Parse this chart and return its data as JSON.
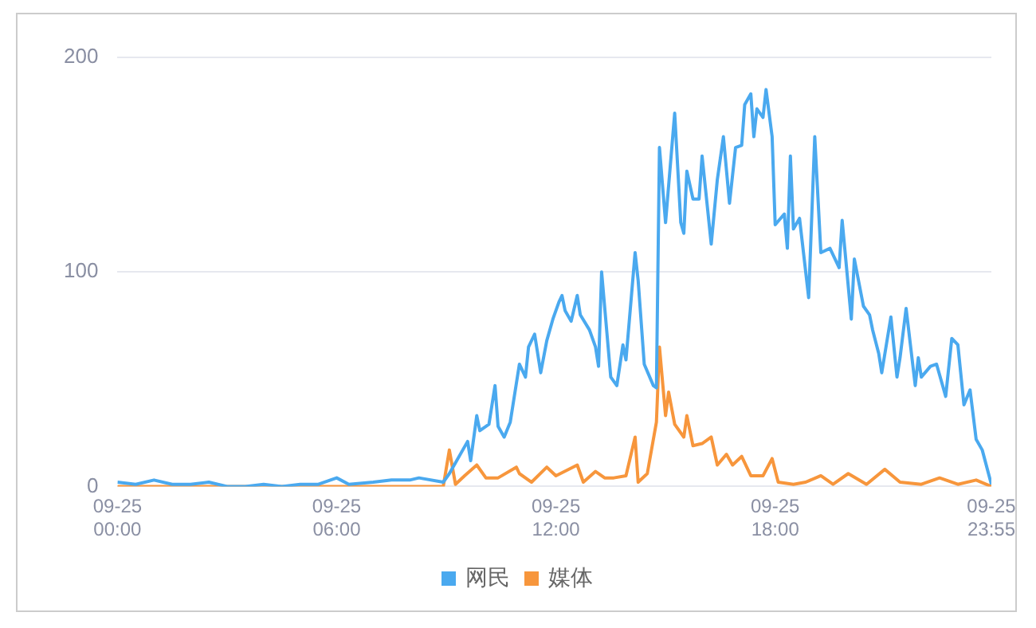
{
  "chart_data": {
    "type": "line",
    "legend": "bottom",
    "grid": "y",
    "marker": "none",
    "line_style": "solid",
    "xlim": [
      "--09-25T00:00",
      "--09-25T23:55"
    ],
    "xticks": [
      {
        "value": "--09-25T00:00",
        "label": "09-25 00:00"
      },
      {
        "value": "--09-25T06:00",
        "label": "09-25 06:00"
      },
      {
        "value": "--09-25T12:00",
        "label": "09-25 12:00"
      },
      {
        "value": "--09-25T18:00",
        "label": "09-25 18:00"
      },
      {
        "value": "--09-25T23:55",
        "label": "09-25 23:55"
      }
    ],
    "ylim": [
      0,
      200
    ],
    "yticks": [
      0,
      100,
      200
    ],
    "series": [
      {
        "name": "网民",
        "color": "#4aa9ef",
        "x": [
          "--09-25T00:00",
          "--09-25T00:30",
          "--09-25T01:00",
          "--09-25T01:30",
          "--09-25T02:00",
          "--09-25T02:30",
          "--09-25T03:00",
          "--09-25T03:30",
          "--09-25T04:00",
          "--09-25T04:30",
          "--09-25T05:00",
          "--09-25T05:30",
          "--09-25T06:00",
          "--09-25T06:20",
          "--09-25T07:00",
          "--09-25T07:30",
          "--09-25T08:00",
          "--09-25T08:15",
          "--09-25T08:55",
          "--09-25T09:05",
          "--09-25T09:35",
          "--09-25T09:40",
          "--09-25T09:50",
          "--09-25T09:55",
          "--09-25T10:10",
          "--09-25T10:20",
          "--09-25T10:25",
          "--09-25T10:35",
          "--09-25T10:45",
          "--09-25T11:00",
          "--09-25T11:10",
          "--09-25T11:15",
          "--09-25T11:25",
          "--09-25T11:35",
          "--09-25T11:45",
          "--09-25T11:55",
          "--09-25T12:05",
          "--09-25T12:10",
          "--09-25T12:15",
          "--09-25T12:25",
          "--09-25T12:35",
          "--09-25T12:40",
          "--09-25T12:55",
          "--09-25T13:05",
          "--09-25T13:10",
          "--09-25T13:15",
          "--09-25T13:30",
          "--09-25T13:40",
          "--09-25T13:50",
          "--09-25T13:55",
          "--09-25T14:10",
          "--09-25T14:15",
          "--09-25T14:25",
          "--09-25T14:40",
          "--09-25T14:45",
          "--09-25T14:50",
          "--09-25T15:00",
          "--09-25T15:15",
          "--09-25T15:25",
          "--09-25T15:30",
          "--09-25T15:35",
          "--09-25T15:45",
          "--09-25T15:55",
          "--09-25T16:00",
          "--09-25T16:15",
          "--09-25T16:25",
          "--09-25T16:35",
          "--09-25T16:45",
          "--09-25T16:55",
          "--09-25T17:05",
          "--09-25T17:10",
          "--09-25T17:20",
          "--09-25T17:25",
          "--09-25T17:30",
          "--09-25T17:40",
          "--09-25T17:45",
          "--09-25T17:55",
          "--09-25T18:00",
          "--09-25T18:15",
          "--09-25T18:20",
          "--09-25T18:25",
          "--09-25T18:30",
          "--09-25T18:40",
          "--09-25T18:55",
          "--09-25T19:05",
          "--09-25T19:15",
          "--09-25T19:30",
          "--09-25T19:45",
          "--09-25T19:50",
          "--09-25T20:05",
          "--09-25T20:10",
          "--09-25T20:25",
          "--09-25T20:35",
          "--09-25T20:40",
          "--09-25T20:50",
          "--09-25T20:55",
          "--09-25T21:10",
          "--09-25T21:20",
          "--09-25T21:25",
          "--09-25T21:35",
          "--09-25T21:50",
          "--09-25T21:55",
          "--09-25T22:00",
          "--09-25T22:15",
          "--09-25T22:25",
          "--09-25T22:40",
          "--09-25T22:50",
          "--09-25T23:00",
          "--09-25T23:10",
          "--09-25T23:20",
          "--09-25T23:30",
          "--09-25T23:40",
          "--09-25T23:55"
        ],
        "values": [
          2,
          1,
          3,
          1,
          1,
          2,
          0,
          0,
          1,
          0,
          1,
          1,
          4,
          1,
          2,
          3,
          3,
          4,
          2,
          6,
          21,
          12,
          33,
          26,
          29,
          47,
          28,
          23,
          30,
          57,
          51,
          65,
          71,
          53,
          68,
          78,
          86,
          89,
          82,
          77,
          89,
          80,
          73,
          65,
          56,
          100,
          51,
          47,
          66,
          59,
          109,
          96,
          57,
          47,
          46,
          158,
          123,
          174,
          123,
          118,
          147,
          134,
          134,
          154,
          113,
          143,
          163,
          132,
          158,
          159,
          178,
          183,
          163,
          176,
          172,
          185,
          163,
          122,
          127,
          111,
          154,
          120,
          125,
          88,
          163,
          109,
          111,
          102,
          124,
          78,
          106,
          84,
          80,
          73,
          62,
          53,
          79,
          51,
          60,
          83,
          47,
          60,
          51,
          56,
          57,
          42,
          69,
          66,
          38,
          45,
          22,
          17,
          1
        ]
      },
      {
        "name": "媒体",
        "color": "#f7963c",
        "x": [
          "--09-25T00:00",
          "--09-25T08:55",
          "--09-25T09:05",
          "--09-25T09:15",
          "--09-25T09:30",
          "--09-25T09:50",
          "--09-25T10:05",
          "--09-25T10:25",
          "--09-25T10:55",
          "--09-25T11:00",
          "--09-25T11:20",
          "--09-25T11:45",
          "--09-25T12:00",
          "--09-25T12:35",
          "--09-25T12:45",
          "--09-25T13:05",
          "--09-25T13:20",
          "--09-25T13:35",
          "--09-25T13:55",
          "--09-25T14:10",
          "--09-25T14:15",
          "--09-25T14:30",
          "--09-25T14:45",
          "--09-25T14:50",
          "--09-25T15:00",
          "--09-25T15:05",
          "--09-25T15:15",
          "--09-25T15:30",
          "--09-25T15:35",
          "--09-25T15:45",
          "--09-25T16:00",
          "--09-25T16:15",
          "--09-25T16:25",
          "--09-25T16:40",
          "--09-25T16:50",
          "--09-25T17:05",
          "--09-25T17:20",
          "--09-25T17:40",
          "--09-25T17:55",
          "--09-25T18:05",
          "--09-25T18:30",
          "--09-25T18:50",
          "--09-25T19:15",
          "--09-25T19:35",
          "--09-25T20:00",
          "--09-25T20:30",
          "--09-25T21:00",
          "--09-25T21:25",
          "--09-25T22:00",
          "--09-25T22:30",
          "--09-25T23:00",
          "--09-25T23:30",
          "--09-25T23:55"
        ],
        "values": [
          0,
          0,
          17,
          1,
          5,
          10,
          4,
          4,
          9,
          6,
          2,
          9,
          5,
          10,
          2,
          7,
          4,
          4,
          5,
          23,
          2,
          6,
          30,
          65,
          33,
          44,
          29,
          23,
          33,
          19,
          20,
          23,
          10,
          15,
          10,
          14,
          5,
          5,
          13,
          2,
          1,
          2,
          5,
          1,
          6,
          1,
          8,
          2,
          1,
          4,
          1,
          3,
          0
        ]
      }
    ]
  }
}
